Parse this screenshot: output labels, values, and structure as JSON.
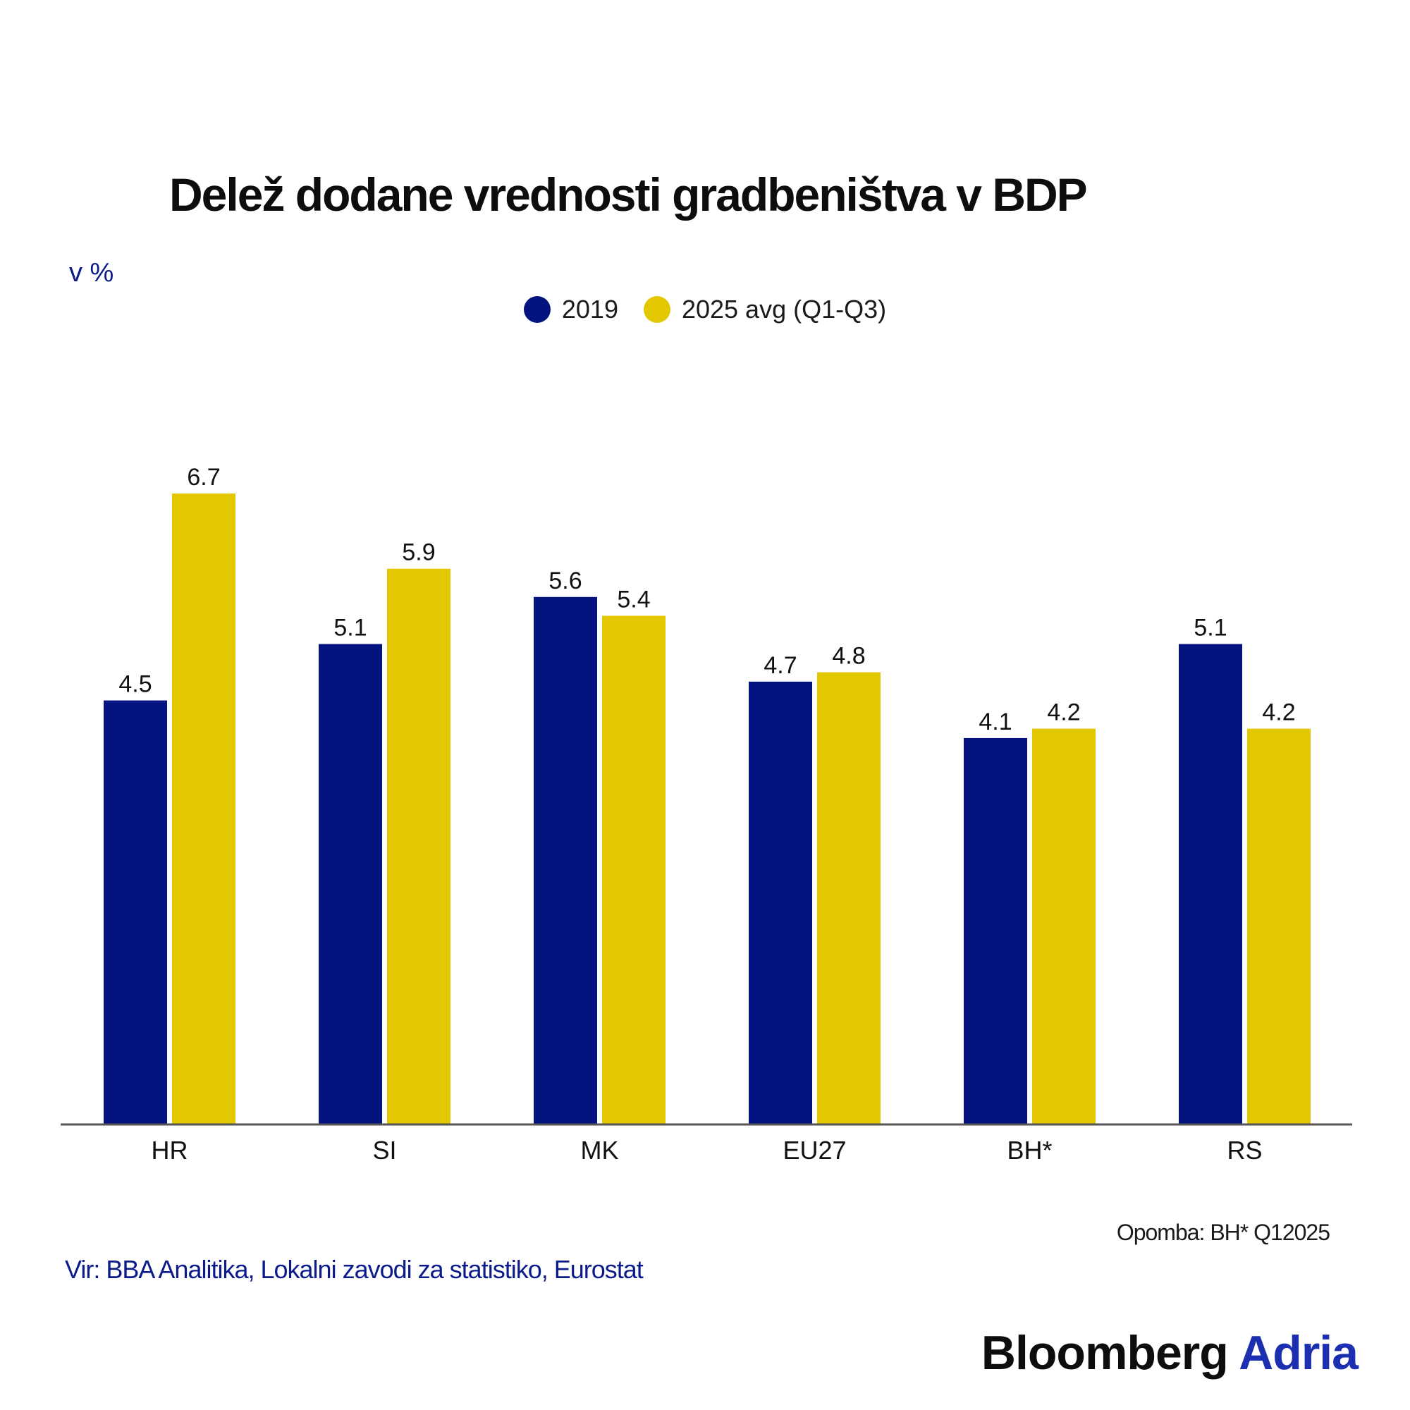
{
  "title": "Delež dodane vrednosti gradbeništva v BDP",
  "unit_label": "v %",
  "legend": [
    {
      "label": "2019",
      "color": "#03137f"
    },
    {
      "label": "2025 avg (Q1-Q3)",
      "color": "#e3c700"
    }
  ],
  "note": "Opomba: BH* Q12025",
  "source": "Vir: BBA Analitika, Lokalni zavodi za statistiko, Eurostat",
  "brand": {
    "part1": "Bloomberg",
    "part2": "Adria"
  },
  "chart_data": {
    "type": "bar",
    "categories": [
      "HR",
      "SI",
      "MK",
      "EU27",
      "BH*",
      "RS"
    ],
    "series": [
      {
        "name": "2019",
        "color": "#03137f",
        "values": [
          4.5,
          5.1,
          5.6,
          4.7,
          4.1,
          5.1
        ]
      },
      {
        "name": "2025 avg (Q1-Q3)",
        "color": "#e3c700",
        "values": [
          6.7,
          5.9,
          5.4,
          4.8,
          4.2,
          4.2
        ]
      }
    ],
    "data_labels": [
      [
        "4.5",
        "5.1",
        "5.6",
        "4.7",
        "4.1",
        "5.1"
      ],
      [
        "6.7",
        "5.9",
        "5.4",
        "4.8",
        "4.2",
        "4.2"
      ]
    ],
    "ylim": [
      0,
      6.7
    ],
    "grid": false,
    "legend_position": "top-center"
  }
}
